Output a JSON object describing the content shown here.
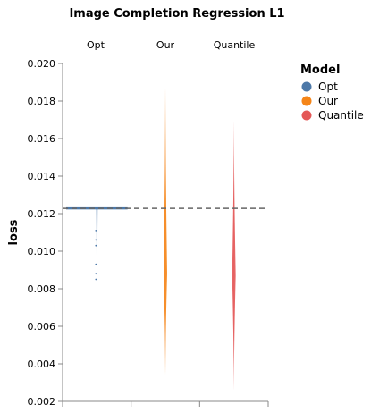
{
  "chart_data": {
    "type": "violin",
    "title": "Image Completion Regression L1",
    "ylabel": "loss",
    "ylim": [
      0.002,
      0.02
    ],
    "yticks": [
      "0.020",
      "0.018",
      "0.016",
      "0.014",
      "0.012",
      "0.010",
      "0.008",
      "0.006",
      "0.004",
      "0.002"
    ],
    "categories": [
      "Opt",
      "Our",
      "Quantile"
    ],
    "reference_line": 0.01228,
    "legend": {
      "title": "Model",
      "placement": "right",
      "items": [
        {
          "label": "Opt",
          "color": "#4c78a8"
        },
        {
          "label": "Our",
          "color": "#f58518"
        },
        {
          "label": "Quantile",
          "color": "#e45756"
        }
      ]
    },
    "series": [
      {
        "name": "Opt",
        "color": "#4c78a8",
        "min": 0.0042,
        "max": 0.0124,
        "mode": 0.01228,
        "outliers": [
          0.0111,
          0.0106,
          0.0103,
          0.0093,
          0.0088,
          0.0085
        ]
      },
      {
        "name": "Our",
        "color": "#f58518",
        "min": 0.0034,
        "max": 0.0187,
        "mode": 0.0088
      },
      {
        "name": "Quantile",
        "color": "#e45756",
        "min": 0.0026,
        "max": 0.0169,
        "mode": 0.0087
      }
    ]
  }
}
